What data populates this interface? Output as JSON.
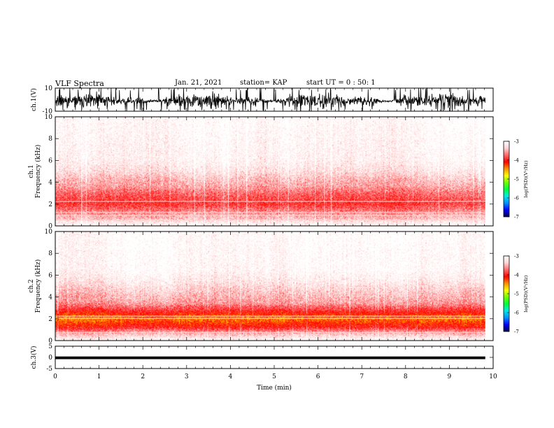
{
  "header": {
    "title": "VLF Spectra",
    "date": "Jan. 21, 2021",
    "station": "station= KAP",
    "start": "start UT =  0 : 50: 1"
  },
  "chart_data": [
    {
      "type": "line",
      "name": "panel-ch1-waveform",
      "ylabel": "ch.1(V)",
      "ylim": [
        -10,
        10
      ],
      "yticks": [
        "10",
        "-10"
      ],
      "xlim": [
        0,
        10
      ],
      "data_end_min": 9.82,
      "envelope": {
        "typical_upper": 4,
        "typical_lower": -6,
        "max": 10,
        "min": -10
      },
      "color": "#000000"
    },
    {
      "type": "heatmap",
      "name": "panel-ch1-spectrogram",
      "ylabel": "ch.1\nFrequency (kHz)",
      "ylim": [
        0,
        10
      ],
      "yticks": [
        "0",
        "2",
        "4",
        "6",
        "8",
        "10"
      ],
      "xlim": [
        0,
        10
      ],
      "data_end_min": 9.82,
      "profile_khz": [
        [
          0,
          -3.0
        ],
        [
          0.4,
          -3.2
        ],
        [
          0.6,
          -3.4
        ],
        [
          1.0,
          -3.5
        ],
        [
          2.0,
          -3.9
        ],
        [
          3.0,
          -3.7
        ],
        [
          3.6,
          -3.5
        ],
        [
          4.2,
          -3.4
        ],
        [
          5.0,
          -3.2
        ],
        [
          6.0,
          -3.05
        ],
        [
          10.0,
          -2.95
        ]
      ],
      "hlines_khz": [
        0.5,
        0.9,
        1.2,
        2.2
      ]
    },
    {
      "type": "heatmap",
      "name": "panel-ch2-spectrogram",
      "ylabel": "ch.2\nFrequency (kHz)",
      "ylim": [
        0,
        10
      ],
      "yticks": [
        "0",
        "2",
        "4",
        "6",
        "8",
        "10"
      ],
      "xlim": [
        0,
        10
      ],
      "data_end_min": 9.82,
      "profile_khz": [
        [
          0,
          -3.0
        ],
        [
          0.4,
          -3.3
        ],
        [
          0.8,
          -3.6
        ],
        [
          1.2,
          -4.0
        ],
        [
          2.0,
          -4.4
        ],
        [
          2.8,
          -3.9
        ],
        [
          3.4,
          -3.55
        ],
        [
          4.5,
          -3.35
        ],
        [
          5.5,
          -3.15
        ],
        [
          6.5,
          -3.0
        ],
        [
          10.0,
          -2.95
        ]
      ],
      "hlines_khz": [
        0.7,
        2.0,
        2.2
      ]
    },
    {
      "type": "line",
      "name": "panel-ch3-waveform",
      "ylabel": "ch.3(V)",
      "ylim": [
        -5,
        5
      ],
      "yticks": [
        "5",
        "0",
        "-5"
      ],
      "xlim": [
        0,
        10
      ],
      "xlabel": "Time (min)",
      "xticks": [
        "0",
        "1",
        "2",
        "3",
        "4",
        "5",
        "6",
        "7",
        "8",
        "9",
        "10"
      ],
      "data_end_min": 9.82,
      "band": [
        -0.8,
        0.4
      ],
      "color": "#000000"
    }
  ],
  "colorbars": [
    {
      "label": "log(PSD)(V²/Hz)",
      "range": [
        -7,
        -3
      ],
      "ticks": [
        "-3",
        "-4",
        "-5",
        "-6",
        "-7"
      ]
    },
    {
      "label": "log(PSD)(V²/Hz)",
      "range": [
        -7,
        -3
      ],
      "ticks": [
        "-3",
        "-4",
        "-5",
        "-6",
        "-7"
      ]
    }
  ],
  "colormap": [
    "#00004a",
    "#0000ff",
    "#0090ff",
    "#00e8e8",
    "#00ff40",
    "#70ff00",
    "#ffff00",
    "#ff9000",
    "#ff0000",
    "#ff6a6a",
    "#ffd4d4",
    "#ffffff"
  ]
}
